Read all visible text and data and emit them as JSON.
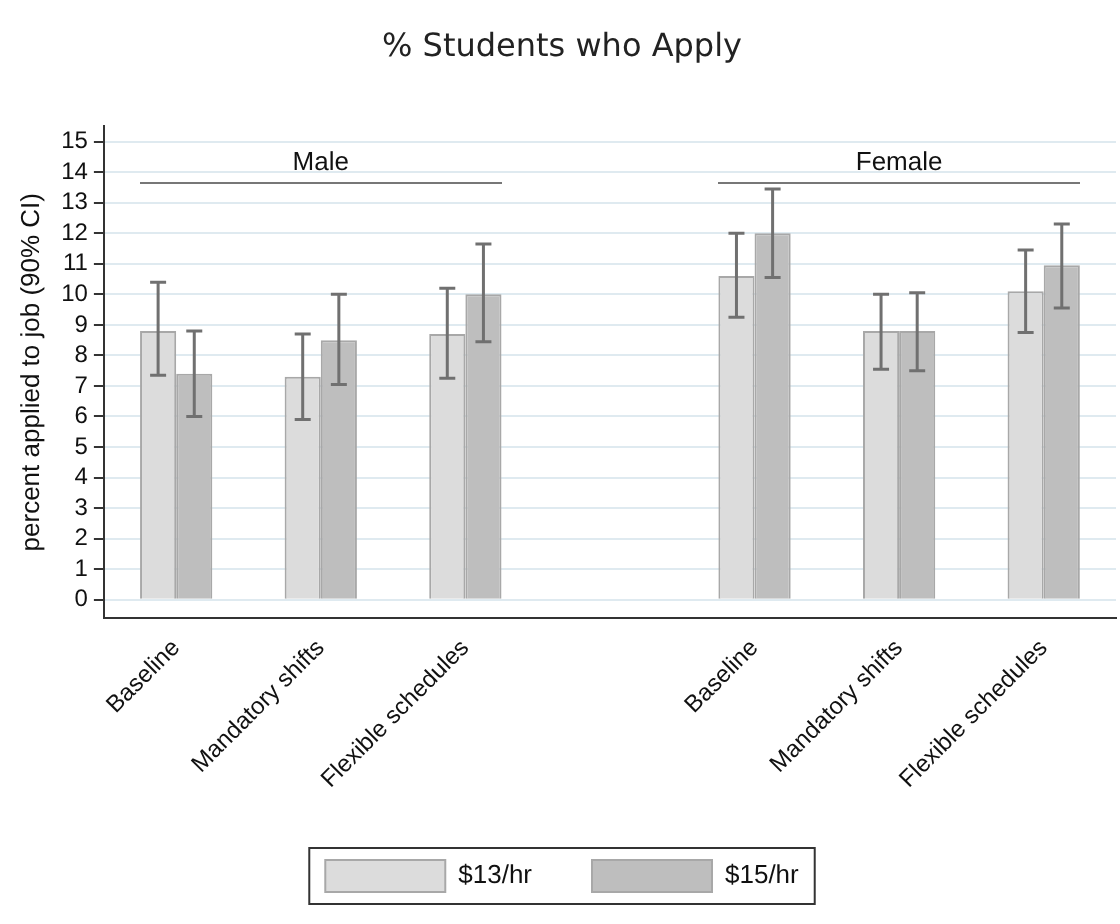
{
  "chart_data": {
    "type": "bar",
    "title": "% Students who Apply",
    "ylabel": "percent applied to job (90% CI)",
    "categories": [
      "Baseline",
      "Mandatory shifts",
      "Flexible schedules",
      null,
      "Baseline",
      "Mandatory shifts",
      "Flexible schedules"
    ],
    "series": [
      {
        "name": "$13/hr",
        "color": "#dcdcdc",
        "values": [
          8.8,
          7.3,
          8.7,
          null,
          10.6,
          8.8,
          10.1
        ],
        "errors": [
          [
            7.35,
            10.4
          ],
          [
            5.9,
            8.7
          ],
          [
            7.25,
            10.2
          ],
          null,
          [
            9.25,
            12.0
          ],
          [
            7.55,
            10.0
          ],
          [
            8.75,
            11.45
          ]
        ]
      },
      {
        "name": "$15/hr",
        "color": "#bebebe",
        "values": [
          7.4,
          8.5,
          10.0,
          null,
          12.0,
          8.8,
          10.95
        ],
        "errors": [
          [
            6.0,
            8.8
          ],
          [
            7.05,
            10.0
          ],
          [
            8.45,
            11.65
          ],
          null,
          [
            10.55,
            13.45
          ],
          [
            7.5,
            10.05
          ],
          [
            9.55,
            12.3
          ]
        ]
      }
    ],
    "ylim": [
      -0.6,
      15.5
    ],
    "yticks": [
      0,
      1,
      2,
      3,
      4,
      5,
      6,
      7,
      8,
      9,
      10,
      11,
      12,
      13,
      14,
      15
    ],
    "grid": "y",
    "legend": "bottom",
    "annotations": [
      "Male",
      "Female"
    ]
  }
}
